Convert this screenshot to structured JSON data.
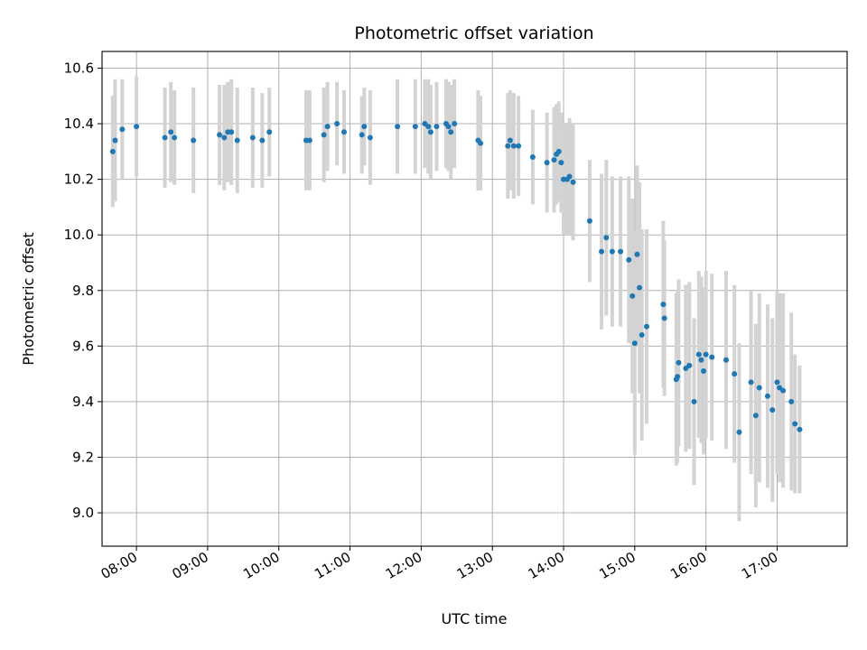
{
  "chart_data": {
    "type": "scatter",
    "title": "Photometric offset variation",
    "xlabel": "UTC time",
    "ylabel": "Photometric offset",
    "x_tick_labels": [
      "08:00",
      "09:00",
      "10:00",
      "11:00",
      "12:00",
      "13:00",
      "14:00",
      "15:00",
      "16:00",
      "17:00"
    ],
    "y_ticks": [
      "9.0",
      "9.2",
      "9.4",
      "9.6",
      "9.8",
      "10.0",
      "10.2",
      "10.4",
      "10.6"
    ],
    "xlim": [
      "07:31",
      "17:59"
    ],
    "ylim": [
      8.88,
      10.66
    ],
    "grid": true,
    "colors": {
      "points": "#1f77b4",
      "errorbars": "#d3d3d3",
      "grid": "#b0b0b0"
    },
    "series": [
      {
        "points": [
          {
            "t": "07:40",
            "y": 10.3,
            "err": 0.2
          },
          {
            "t": "07:42",
            "y": 10.34,
            "err": 0.22
          },
          {
            "t": "07:48",
            "y": 10.38,
            "err": 0.18
          },
          {
            "t": "08:00",
            "y": 10.39,
            "err": 0.18
          },
          {
            "t": "08:24",
            "y": 10.35,
            "err": 0.18
          },
          {
            "t": "08:29",
            "y": 10.37,
            "err": 0.18
          },
          {
            "t": "08:32",
            "y": 10.35,
            "err": 0.17
          },
          {
            "t": "08:48",
            "y": 10.34,
            "err": 0.19
          },
          {
            "t": "09:10",
            "y": 10.36,
            "err": 0.18
          },
          {
            "t": "09:14",
            "y": 10.35,
            "err": 0.19
          },
          {
            "t": "09:17",
            "y": 10.37,
            "err": 0.18
          },
          {
            "t": "09:20",
            "y": 10.37,
            "err": 0.19
          },
          {
            "t": "09:25",
            "y": 10.34,
            "err": 0.19
          },
          {
            "t": "09:38",
            "y": 10.35,
            "err": 0.18
          },
          {
            "t": "09:46",
            "y": 10.34,
            "err": 0.17
          },
          {
            "t": "09:52",
            "y": 10.37,
            "err": 0.16
          },
          {
            "t": "10:23",
            "y": 10.34,
            "err": 0.18
          },
          {
            "t": "10:26",
            "y": 10.34,
            "err": 0.18
          },
          {
            "t": "10:38",
            "y": 10.36,
            "err": 0.17
          },
          {
            "t": "10:41",
            "y": 10.39,
            "err": 0.16
          },
          {
            "t": "10:49",
            "y": 10.4,
            "err": 0.15
          },
          {
            "t": "10:55",
            "y": 10.37,
            "err": 0.15
          },
          {
            "t": "11:10",
            "y": 10.36,
            "err": 0.14
          },
          {
            "t": "11:12",
            "y": 10.39,
            "err": 0.14
          },
          {
            "t": "11:17",
            "y": 10.35,
            "err": 0.17
          },
          {
            "t": "11:40",
            "y": 10.39,
            "err": 0.17
          },
          {
            "t": "11:55",
            "y": 10.39,
            "err": 0.17
          },
          {
            "t": "12:03",
            "y": 10.4,
            "err": 0.16
          },
          {
            "t": "12:06",
            "y": 10.39,
            "err": 0.17
          },
          {
            "t": "12:08",
            "y": 10.37,
            "err": 0.17
          },
          {
            "t": "12:13",
            "y": 10.39,
            "err": 0.16
          },
          {
            "t": "12:21",
            "y": 10.4,
            "err": 0.16
          },
          {
            "t": "12:23",
            "y": 10.39,
            "err": 0.16
          },
          {
            "t": "12:25",
            "y": 10.37,
            "err": 0.17
          },
          {
            "t": "12:28",
            "y": 10.4,
            "err": 0.16
          },
          {
            "t": "12:48",
            "y": 10.34,
            "err": 0.18
          },
          {
            "t": "12:50",
            "y": 10.33,
            "err": 0.17
          },
          {
            "t": "13:13",
            "y": 10.32,
            "err": 0.19
          },
          {
            "t": "13:15",
            "y": 10.34,
            "err": 0.18
          },
          {
            "t": "13:18",
            "y": 10.32,
            "err": 0.19
          },
          {
            "t": "13:22",
            "y": 10.32,
            "err": 0.18
          },
          {
            "t": "13:34",
            "y": 10.28,
            "err": 0.17
          },
          {
            "t": "13:46",
            "y": 10.26,
            "err": 0.18
          },
          {
            "t": "13:52",
            "y": 10.27,
            "err": 0.19
          },
          {
            "t": "13:54",
            "y": 10.29,
            "err": 0.18
          },
          {
            "t": "13:56",
            "y": 10.3,
            "err": 0.18
          },
          {
            "t": "13:58",
            "y": 10.26,
            "err": 0.18
          },
          {
            "t": "14:00",
            "y": 10.2,
            "err": 0.2
          },
          {
            "t": "14:03",
            "y": 10.2,
            "err": 0.2
          },
          {
            "t": "14:05",
            "y": 10.21,
            "err": 0.21
          },
          {
            "t": "14:08",
            "y": 10.19,
            "err": 0.21
          },
          {
            "t": "14:22",
            "y": 10.05,
            "err": 0.22
          },
          {
            "t": "14:32",
            "y": 9.94,
            "err": 0.28
          },
          {
            "t": "14:36",
            "y": 9.99,
            "err": 0.28
          },
          {
            "t": "14:41",
            "y": 9.94,
            "err": 0.27
          },
          {
            "t": "14:48",
            "y": 9.94,
            "err": 0.27
          },
          {
            "t": "14:55",
            "y": 9.91,
            "err": 0.3
          },
          {
            "t": "14:58",
            "y": 9.78,
            "err": 0.35
          },
          {
            "t": "15:00",
            "y": 9.61,
            "err": 0.4
          },
          {
            "t": "15:02",
            "y": 9.93,
            "err": 0.32
          },
          {
            "t": "15:04",
            "y": 9.81,
            "err": 0.38
          },
          {
            "t": "15:06",
            "y": 9.64,
            "err": 0.38
          },
          {
            "t": "15:10",
            "y": 9.67,
            "err": 0.35
          },
          {
            "t": "15:24",
            "y": 9.75,
            "err": 0.3
          },
          {
            "t": "15:25",
            "y": 9.7,
            "err": 0.28
          },
          {
            "t": "15:35",
            "y": 9.48,
            "err": 0.31
          },
          {
            "t": "15:36",
            "y": 9.49,
            "err": 0.31
          },
          {
            "t": "15:37",
            "y": 9.54,
            "err": 0.3
          },
          {
            "t": "15:43",
            "y": 9.52,
            "err": 0.3
          },
          {
            "t": "15:46",
            "y": 9.53,
            "err": 0.3
          },
          {
            "t": "15:50",
            "y": 9.4,
            "err": 0.3
          },
          {
            "t": "15:54",
            "y": 9.57,
            "err": 0.3
          },
          {
            "t": "15:56",
            "y": 9.55,
            "err": 0.3
          },
          {
            "t": "15:58",
            "y": 9.51,
            "err": 0.3
          },
          {
            "t": "16:00",
            "y": 9.57,
            "err": 0.3
          },
          {
            "t": "16:05",
            "y": 9.56,
            "err": 0.3
          },
          {
            "t": "16:17",
            "y": 9.55,
            "err": 0.32
          },
          {
            "t": "16:24",
            "y": 9.5,
            "err": 0.32
          },
          {
            "t": "16:28",
            "y": 9.29,
            "err": 0.32
          },
          {
            "t": "16:38",
            "y": 9.47,
            "err": 0.33
          },
          {
            "t": "16:42",
            "y": 9.35,
            "err": 0.33
          },
          {
            "t": "16:45",
            "y": 9.45,
            "err": 0.34
          },
          {
            "t": "16:52",
            "y": 9.42,
            "err": 0.33
          },
          {
            "t": "16:56",
            "y": 9.37,
            "err": 0.33
          },
          {
            "t": "17:00",
            "y": 9.47,
            "err": 0.33
          },
          {
            "t": "17:02",
            "y": 9.45,
            "err": 0.34
          },
          {
            "t": "17:05",
            "y": 9.44,
            "err": 0.35
          },
          {
            "t": "17:12",
            "y": 9.4,
            "err": 0.32
          },
          {
            "t": "17:15",
            "y": 9.32,
            "err": 0.25
          },
          {
            "t": "17:19",
            "y": 9.3,
            "err": 0.23
          }
        ]
      }
    ]
  }
}
